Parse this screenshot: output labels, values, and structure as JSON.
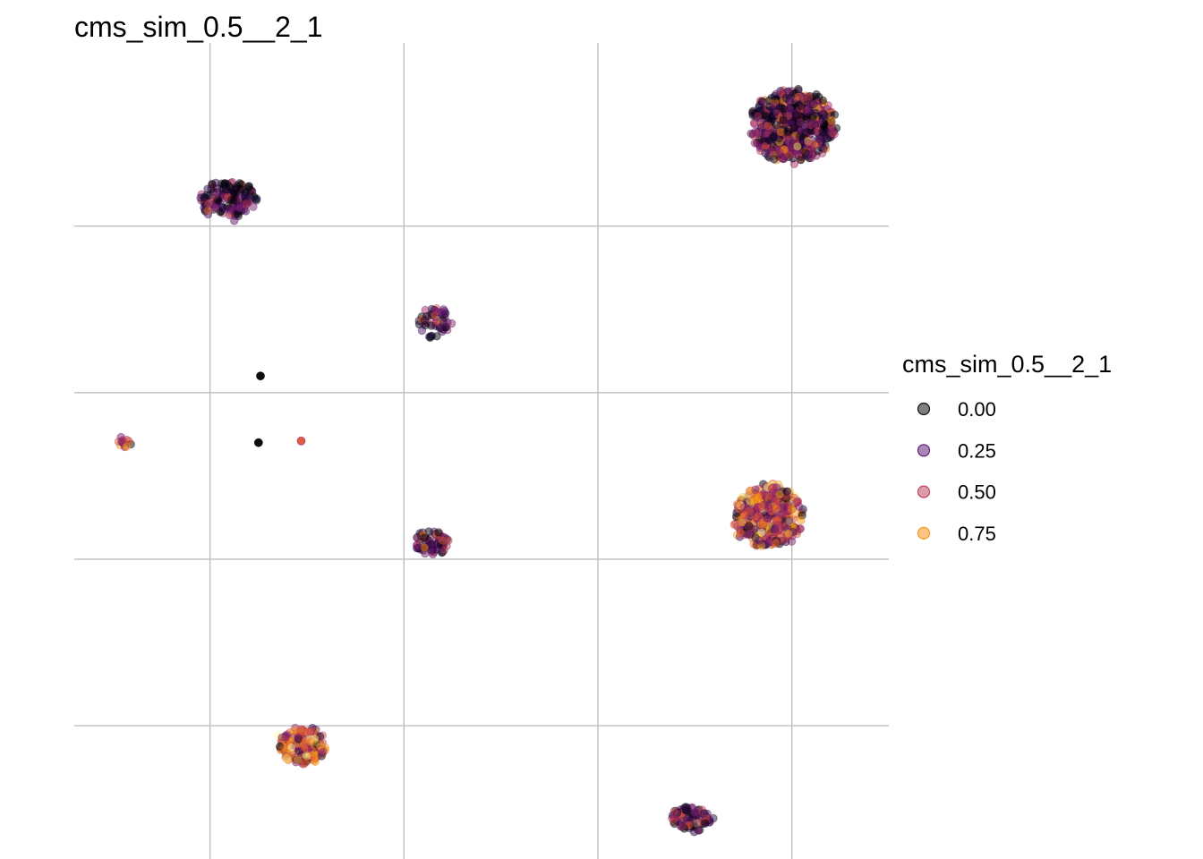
{
  "chart_data": {
    "type": "scatter",
    "title": "cms_sim_0.5__2_1",
    "xlabel": "",
    "ylabel": "",
    "grid": true,
    "xlim": [
      -7.5,
      13.5
    ],
    "ylim": [
      -4,
      20.5
    ],
    "x_gridlines": [
      -4,
      1,
      6,
      11
    ],
    "y_gridlines": [
      0,
      5,
      10,
      15
    ],
    "legend": {
      "title": "cms_sim_0.5__2_1",
      "position": "right",
      "entries": [
        {
          "label": "0.00",
          "value": 0.0,
          "color": "#000004"
        },
        {
          "label": "0.25",
          "value": 0.25,
          "color": "#56106E"
        },
        {
          "label": "0.50",
          "value": 0.5,
          "color": "#BB3754"
        },
        {
          "label": "0.75",
          "value": 0.75,
          "color": "#F98C0A"
        }
      ]
    },
    "colormap": [
      "#000004",
      "#1B0C41",
      "#4A0C6B",
      "#781C6D",
      "#A52C60",
      "#CF4446",
      "#ED6925",
      "#FB9B06",
      "#F7D13D",
      "#FCFFA4"
    ],
    "clusters": [
      {
        "id": "top-right",
        "x": 11.0,
        "y": 18.0,
        "rx": 1.2,
        "ry": 1.15,
        "n": 600,
        "mean_value": 0.2
      },
      {
        "id": "top-left",
        "x": -3.55,
        "y": 15.8,
        "rx": 0.8,
        "ry": 0.6,
        "n": 160,
        "mean_value": 0.22
      },
      {
        "id": "center-small",
        "x": 1.8,
        "y": 12.1,
        "rx": 0.45,
        "ry": 0.5,
        "n": 55,
        "mean_value": 0.25
      },
      {
        "id": "mid-right",
        "x": 10.4,
        "y": 6.3,
        "rx": 0.95,
        "ry": 1.0,
        "n": 420,
        "mean_value": 0.55
      },
      {
        "id": "center-lower",
        "x": 1.7,
        "y": 5.5,
        "rx": 0.48,
        "ry": 0.42,
        "n": 70,
        "mean_value": 0.18
      },
      {
        "id": "bottom-left",
        "x": -1.6,
        "y": -0.6,
        "rx": 0.68,
        "ry": 0.6,
        "n": 190,
        "mean_value": 0.6
      },
      {
        "id": "bottom-right",
        "x": 8.4,
        "y": -2.8,
        "rx": 0.58,
        "ry": 0.42,
        "n": 95,
        "mean_value": 0.2
      },
      {
        "id": "left-tiny",
        "x": -6.2,
        "y": 8.5,
        "rx": 0.2,
        "ry": 0.2,
        "n": 14,
        "mean_value": 0.4
      }
    ],
    "points": [
      {
        "x": -2.7,
        "y": 10.5,
        "value": 0.0
      },
      {
        "x": -2.75,
        "y": 8.5,
        "value": 0.0
      },
      {
        "x": -1.65,
        "y": 8.55,
        "value": 0.6
      }
    ]
  }
}
